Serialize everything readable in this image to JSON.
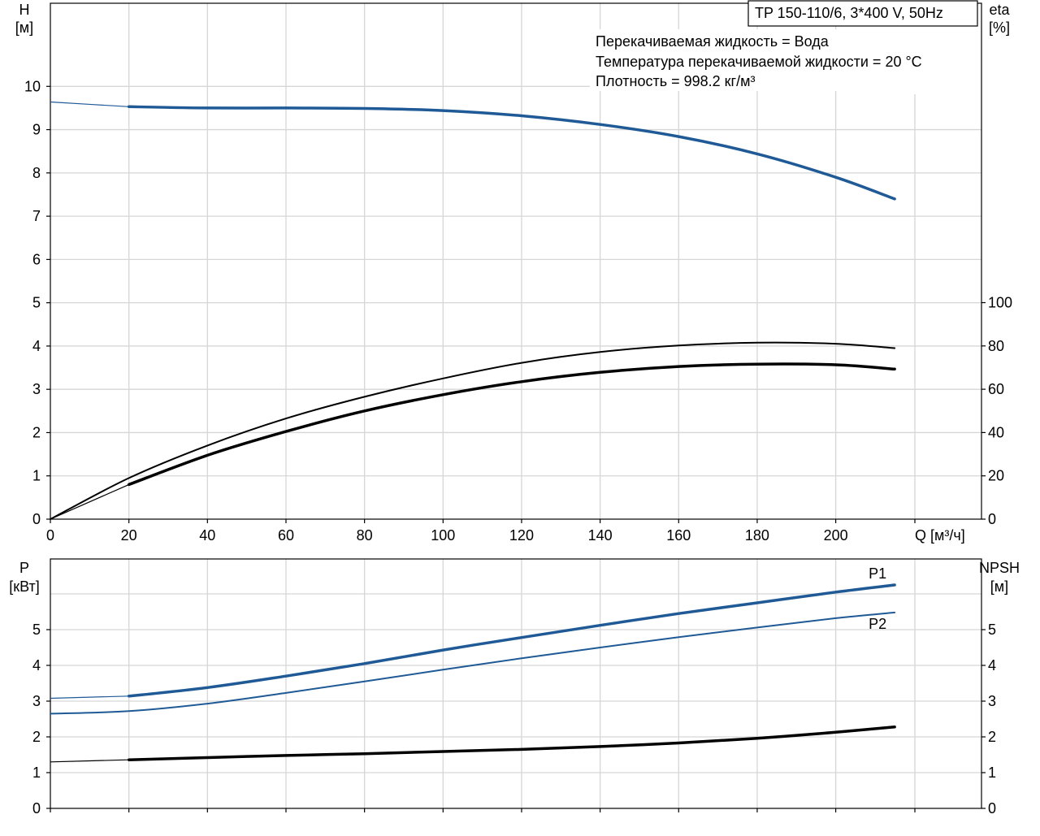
{
  "header": {
    "pump_model": "TP 150-110/6, 3*400 V, 50Hz"
  },
  "info": {
    "liquid": "Перекачиваемая жидкость = Вода",
    "temperature": "Температура перекачиваемой жидкости = 20 °C",
    "density": "Плотность = 998.2 кг/м³"
  },
  "colors": {
    "blue": "#1f5a96",
    "black": "#000000",
    "grid": "#d6d6d6"
  },
  "chart_data": [
    {
      "type": "line",
      "panel": "top",
      "xlabel": "Q [м³/ч]",
      "xlim": [
        0,
        220
      ],
      "x_ticks": [
        0,
        20,
        40,
        60,
        80,
        100,
        120,
        140,
        160,
        180,
        200
      ],
      "y_left": {
        "label_line1": "H",
        "label_line2": "[м]",
        "lim": [
          0,
          11.5
        ],
        "ticks": [
          0,
          1,
          2,
          3,
          4,
          5,
          6,
          7,
          8,
          9,
          10
        ]
      },
      "y_right": {
        "label_line1": "eta",
        "label_line2": "[%]",
        "lim": [
          0,
          100
        ],
        "ticks": [
          0,
          20,
          40,
          60,
          80,
          100
        ]
      },
      "grid": true,
      "series": [
        {
          "key": "H",
          "axis": "left",
          "color": "#1f5a96",
          "width": 3.5,
          "operating_range": [
            20,
            215
          ],
          "x": [
            0,
            20,
            40,
            60,
            80,
            100,
            120,
            140,
            160,
            180,
            200,
            215
          ],
          "y": [
            9.64,
            9.53,
            9.5,
            9.5,
            9.49,
            9.44,
            9.32,
            9.12,
            8.84,
            8.44,
            7.9,
            7.4
          ]
        },
        {
          "key": "eta_upper",
          "axis": "right",
          "color": "#000000",
          "width": 2,
          "operating_range": [
            0,
            215
          ],
          "x": [
            0,
            20,
            40,
            60,
            80,
            100,
            120,
            140,
            160,
            180,
            200,
            215
          ],
          "y": [
            0,
            19,
            34,
            46.5,
            56.5,
            65,
            72.2,
            77.2,
            80.2,
            81.5,
            81,
            79
          ]
        },
        {
          "key": "eta_lower",
          "axis": "right",
          "color": "#000000",
          "width": 3.5,
          "operating_range": [
            20,
            215
          ],
          "x": [
            0,
            20,
            40,
            60,
            80,
            100,
            120,
            140,
            160,
            180,
            200,
            215
          ],
          "y": [
            0,
            16,
            29.5,
            40.5,
            50,
            57.5,
            63.5,
            67.8,
            70.5,
            71.6,
            71.3,
            69.3
          ]
        }
      ]
    },
    {
      "type": "line",
      "panel": "bottom",
      "xlim": [
        0,
        220
      ],
      "x_ticks": [
        0,
        20,
        40,
        60,
        80,
        100,
        120,
        140,
        160,
        180,
        200
      ],
      "y_left": {
        "label_line1": "P",
        "label_line2": "[кВт]",
        "lim": [
          0,
          6.4
        ],
        "ticks": [
          0,
          1,
          2,
          3,
          4,
          5
        ]
      },
      "y_right": {
        "label_line1": "NPSH",
        "label_line2": "[м]",
        "lim": [
          0,
          6.4
        ],
        "ticks": [
          0,
          1,
          2,
          3,
          4,
          5
        ]
      },
      "grid": true,
      "series": [
        {
          "name": "P1",
          "axis": "left",
          "color": "#1f5a96",
          "width": 3.5,
          "operating_range": [
            20,
            215
          ],
          "x": [
            0,
            20,
            40,
            60,
            80,
            100,
            120,
            140,
            160,
            180,
            200,
            215
          ],
          "y": [
            3.08,
            3.14,
            3.38,
            3.7,
            4.05,
            4.43,
            4.78,
            5.12,
            5.45,
            5.75,
            6.05,
            6.25
          ]
        },
        {
          "name": "P2",
          "axis": "left",
          "color": "#1f5a96",
          "width": 2,
          "operating_range": [
            0,
            215
          ],
          "x": [
            0,
            20,
            40,
            60,
            80,
            100,
            120,
            140,
            160,
            180,
            200,
            215
          ],
          "y": [
            2.65,
            2.72,
            2.93,
            3.23,
            3.55,
            3.88,
            4.2,
            4.5,
            4.79,
            5.06,
            5.32,
            5.48
          ]
        },
        {
          "key": "NPSH",
          "axis": "right",
          "color": "#000000",
          "width": 3.5,
          "operating_range": [
            20,
            215
          ],
          "x": [
            0,
            20,
            40,
            60,
            80,
            100,
            120,
            140,
            160,
            180,
            200,
            215
          ],
          "y": [
            1.3,
            1.36,
            1.42,
            1.48,
            1.53,
            1.59,
            1.65,
            1.73,
            1.83,
            1.96,
            2.13,
            2.28
          ]
        }
      ]
    }
  ]
}
